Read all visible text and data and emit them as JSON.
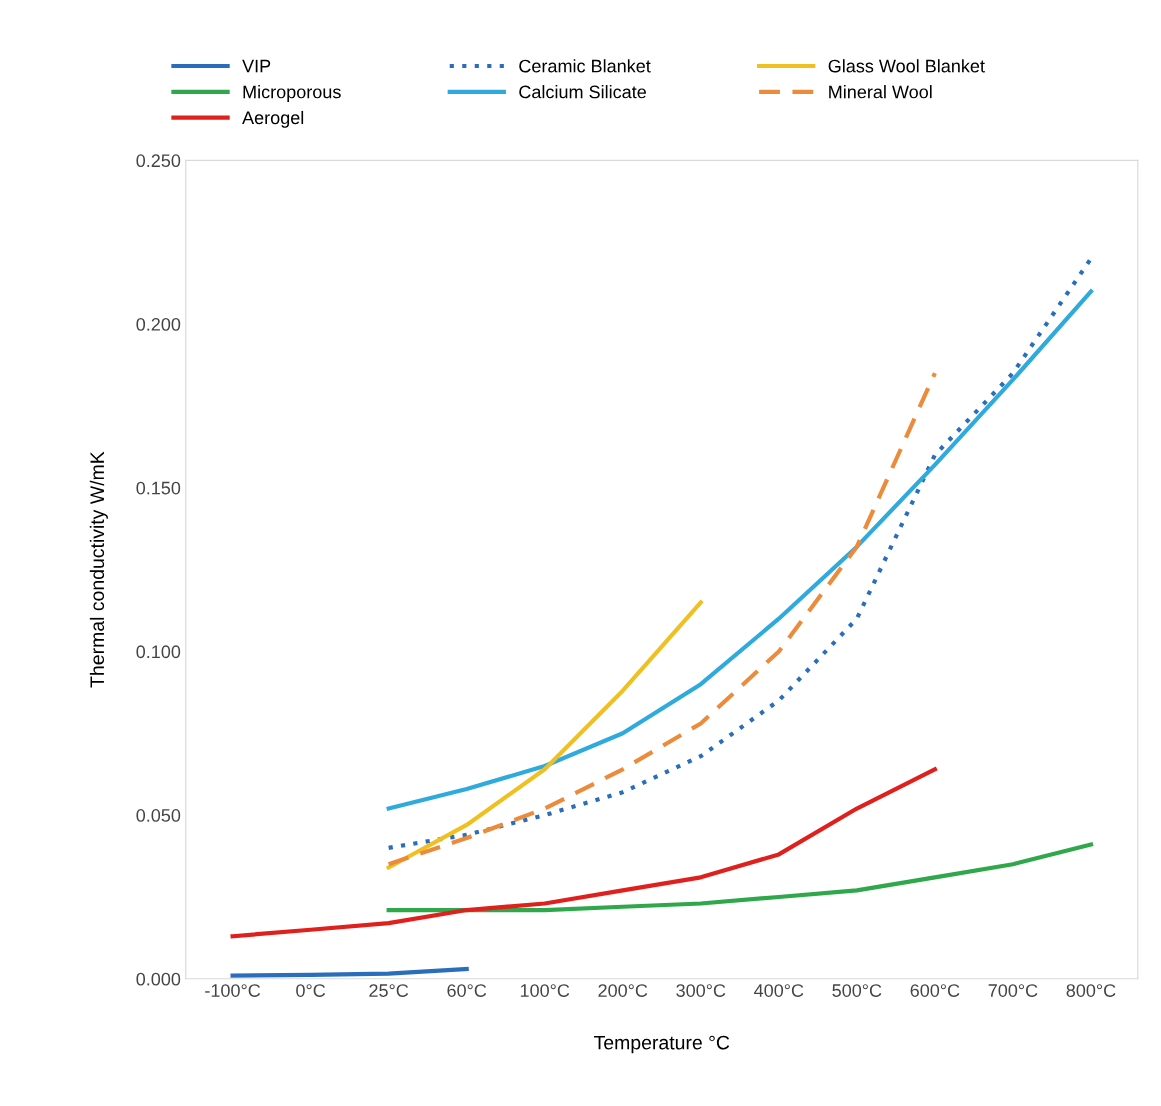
{
  "chart_data": {
    "type": "line",
    "xlabel": "Temperature °C",
    "ylabel": "Thermal conductivity W/mK",
    "categories": [
      "-100°C",
      "0°C",
      "25°C",
      "60°C",
      "100°C",
      "200°C",
      "300°C",
      "400°C",
      "500°C",
      "600°C",
      "700°C",
      "800°C"
    ],
    "series": [
      {
        "name": "VIP",
        "color": "#2a6ebb",
        "line_style": "solid",
        "values": [
          0.001,
          0.0012,
          0.0016,
          0.003,
          null,
          null,
          null,
          null,
          null,
          null,
          null,
          null
        ]
      },
      {
        "name": "Microporous",
        "color": "#2ea84a",
        "line_style": "solid",
        "values": [
          null,
          null,
          0.021,
          0.021,
          0.021,
          0.022,
          0.023,
          0.025,
          0.027,
          0.031,
          0.035,
          0.041
        ]
      },
      {
        "name": "Aerogel",
        "color": "#e0201c",
        "line_style": "solid",
        "values": [
          0.013,
          0.015,
          0.017,
          0.021,
          0.023,
          0.027,
          0.031,
          0.038,
          0.052,
          0.064,
          null,
          null
        ]
      },
      {
        "name": "Ceramic Blanket",
        "color": "#2a6ebb",
        "line_style": "dotted",
        "values": [
          null,
          null,
          0.04,
          0.044,
          0.05,
          0.057,
          0.068,
          0.085,
          0.11,
          0.16,
          0.185,
          0.22
        ]
      },
      {
        "name": "Calcium Silicate",
        "color": "#2eaadc",
        "line_style": "solid",
        "values": [
          null,
          null,
          0.052,
          0.058,
          0.065,
          0.075,
          0.09,
          0.11,
          0.132,
          0.157,
          0.183,
          0.21
        ]
      },
      {
        "name": "Glass Wool Blanket",
        "color": "#f0c020",
        "line_style": "solid",
        "values": [
          null,
          null,
          0.034,
          0.047,
          0.064,
          0.088,
          0.115,
          null,
          null,
          null,
          null,
          null
        ]
      },
      {
        "name": "Mineral Wool",
        "color": "#ed8b3c",
        "line_style": "dashed",
        "values": [
          null,
          null,
          0.035,
          0.043,
          0.052,
          0.064,
          0.078,
          0.1,
          0.132,
          0.185,
          null,
          null
        ]
      }
    ],
    "ylim": [
      0,
      0.25
    ],
    "yticks": [
      {
        "value": 0,
        "label": "0.000"
      },
      {
        "value": 0.05,
        "label": "0.050"
      },
      {
        "value": 0.1,
        "label": "0.100"
      },
      {
        "value": 0.15,
        "label": "0.150"
      },
      {
        "value": 0.2,
        "label": "0.200"
      },
      {
        "value": 0.25,
        "label": "0.250"
      }
    ],
    "grid": false,
    "legend": "top",
    "marker": "none"
  }
}
